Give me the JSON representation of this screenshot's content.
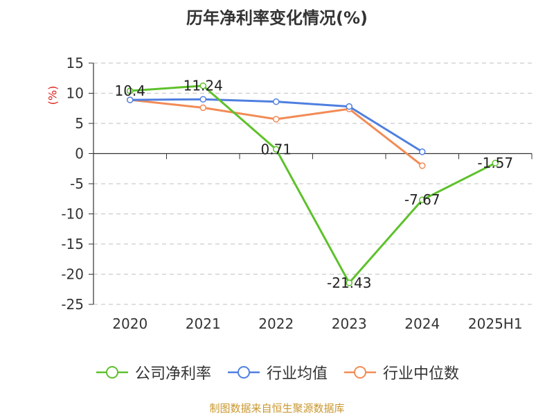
{
  "title": "历年净利率变化情况(%)",
  "source": "制图数据来自恒生聚源数据库",
  "colors": {
    "axis_label": "#e0201a",
    "source_text": "#c9972e"
  },
  "chart_data": {
    "type": "line",
    "title": "历年净利率变化情况(%)",
    "ylabel": "(%)",
    "xlabel": "",
    "categories": [
      "2020",
      "2021",
      "2022",
      "2023",
      "2024",
      "2025H1"
    ],
    "ylim": [
      -25,
      15
    ],
    "yticks": [
      15,
      10,
      5,
      0,
      -5,
      -10,
      -15,
      -20,
      -25
    ],
    "grid": true,
    "legend": "bottom-center",
    "series": [
      {
        "name": "公司净利率",
        "color": "#5dc12b",
        "values": [
          10.4,
          11.24,
          0.71,
          -21.43,
          -7.67,
          -1.57
        ],
        "labels": [
          "10.4",
          "11.24",
          "0.71",
          "-21.43",
          "-7.67",
          "-1.57"
        ]
      },
      {
        "name": "行业均值",
        "color": "#4f7fe0",
        "values": [
          8.9,
          9.0,
          8.6,
          7.8,
          0.3,
          null
        ]
      },
      {
        "name": "行业中位数",
        "color": "#f28b55",
        "values": [
          8.9,
          7.6,
          5.7,
          7.4,
          -2.0,
          null
        ]
      }
    ]
  }
}
